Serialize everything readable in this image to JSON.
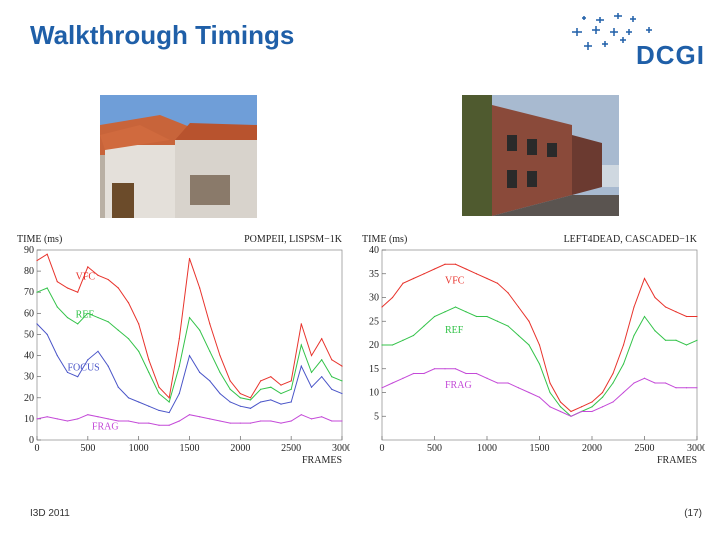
{
  "slide": {
    "title": "Walkthrough Timings",
    "footer_left": "I3D 2011",
    "footer_right": "(17)",
    "logo_text": "DCGI"
  },
  "colors": {
    "title": "#1f5fa8",
    "vfc": "#e8332c",
    "ref": "#34c34a",
    "focus": "#4a55c8",
    "frag": "#c44ad8"
  },
  "chart_data": [
    {
      "type": "line",
      "title": "POMPEII, LISPSM−1K",
      "ylabel": "TIME (ms)",
      "xlabel": "FRAMES",
      "xlim": [
        0,
        3000
      ],
      "ylim": [
        0,
        90
      ],
      "xticks": [
        0,
        500,
        1000,
        1500,
        2000,
        2500,
        3000
      ],
      "yticks": [
        0,
        10,
        20,
        30,
        40,
        50,
        60,
        70,
        80,
        90
      ],
      "series": [
        {
          "name": "VFC",
          "color": "#e8332c",
          "x": [
            0,
            100,
            200,
            300,
            400,
            500,
            600,
            700,
            800,
            900,
            1000,
            1100,
            1200,
            1300,
            1400,
            1500,
            1600,
            1700,
            1800,
            1900,
            2000,
            2100,
            2200,
            2300,
            2400,
            2500,
            2600,
            2700,
            2800,
            2900,
            3000
          ],
          "y": [
            85,
            88,
            75,
            72,
            70,
            82,
            78,
            76,
            72,
            65,
            55,
            38,
            25,
            20,
            48,
            86,
            72,
            55,
            40,
            28,
            22,
            20,
            28,
            30,
            26,
            28,
            55,
            40,
            48,
            38,
            35
          ]
        },
        {
          "name": "REF",
          "color": "#34c34a",
          "x": [
            0,
            100,
            200,
            300,
            400,
            500,
            600,
            700,
            800,
            900,
            1000,
            1100,
            1200,
            1300,
            1400,
            1500,
            1600,
            1700,
            1800,
            1900,
            2000,
            2100,
            2200,
            2300,
            2400,
            2500,
            2600,
            2700,
            2800,
            2900,
            3000
          ],
          "y": [
            70,
            72,
            63,
            58,
            55,
            60,
            58,
            56,
            52,
            48,
            42,
            32,
            22,
            18,
            35,
            58,
            52,
            42,
            32,
            24,
            20,
            19,
            24,
            25,
            22,
            24,
            45,
            32,
            38,
            30,
            28
          ]
        },
        {
          "name": "FOCUS",
          "color": "#4a55c8",
          "x": [
            0,
            100,
            200,
            300,
            400,
            500,
            600,
            700,
            800,
            900,
            1000,
            1100,
            1200,
            1300,
            1400,
            1500,
            1600,
            1700,
            1800,
            1900,
            2000,
            2100,
            2200,
            2300,
            2400,
            2500,
            2600,
            2700,
            2800,
            2900,
            3000
          ],
          "y": [
            55,
            50,
            40,
            32,
            30,
            38,
            42,
            35,
            25,
            20,
            18,
            16,
            14,
            13,
            22,
            40,
            32,
            28,
            22,
            18,
            16,
            15,
            18,
            19,
            17,
            18,
            35,
            25,
            30,
            24,
            22
          ]
        },
        {
          "name": "FRAG",
          "color": "#c44ad8",
          "x": [
            0,
            100,
            200,
            300,
            400,
            500,
            600,
            700,
            800,
            900,
            1000,
            1100,
            1200,
            1300,
            1400,
            1500,
            1600,
            1700,
            1800,
            1900,
            2000,
            2100,
            2200,
            2300,
            2400,
            2500,
            2600,
            2700,
            2800,
            2900,
            3000
          ],
          "y": [
            10,
            11,
            10,
            9,
            10,
            12,
            11,
            10,
            9,
            9,
            8,
            8,
            7,
            7,
            9,
            12,
            11,
            10,
            9,
            8,
            8,
            8,
            9,
            9,
            8,
            9,
            12,
            10,
            11,
            9,
            9
          ]
        }
      ],
      "annotations": [
        "VFC",
        "REF",
        "FOCUS",
        "FRAG"
      ]
    },
    {
      "type": "line",
      "title": "LEFT4DEAD, CASCADED−1K",
      "ylabel": "TIME (ms)",
      "xlabel": "FRAMES",
      "xlim": [
        0,
        3000
      ],
      "ylim": [
        0,
        40
      ],
      "xticks": [
        0,
        500,
        1000,
        1500,
        2000,
        2500,
        3000
      ],
      "yticks": [
        5,
        10,
        15,
        20,
        25,
        30,
        35,
        40
      ],
      "series": [
        {
          "name": "VFC",
          "color": "#e8332c",
          "x": [
            0,
            100,
            200,
            300,
            400,
            500,
            600,
            700,
            800,
            900,
            1000,
            1100,
            1200,
            1300,
            1400,
            1500,
            1600,
            1700,
            1800,
            1900,
            2000,
            2100,
            2200,
            2300,
            2400,
            2500,
            2600,
            2700,
            2800,
            2900,
            3000
          ],
          "y": [
            28,
            30,
            33,
            34,
            35,
            36,
            37,
            37,
            36,
            35,
            34,
            33,
            31,
            28,
            25,
            20,
            12,
            8,
            6,
            7,
            8,
            10,
            14,
            20,
            28,
            34,
            30,
            28,
            27,
            26,
            26
          ]
        },
        {
          "name": "REF",
          "color": "#34c34a",
          "x": [
            0,
            100,
            200,
            300,
            400,
            500,
            600,
            700,
            800,
            900,
            1000,
            1100,
            1200,
            1300,
            1400,
            1500,
            1600,
            1700,
            1800,
            1900,
            2000,
            2100,
            2200,
            2300,
            2400,
            2500,
            2600,
            2700,
            2800,
            2900,
            3000
          ],
          "y": [
            20,
            20,
            21,
            22,
            24,
            26,
            27,
            28,
            27,
            26,
            26,
            25,
            24,
            22,
            20,
            16,
            10,
            7,
            5,
            6,
            7,
            9,
            12,
            16,
            22,
            26,
            23,
            21,
            21,
            20,
            21
          ]
        },
        {
          "name": "FRAG",
          "color": "#c44ad8",
          "x": [
            0,
            100,
            200,
            300,
            400,
            500,
            600,
            700,
            800,
            900,
            1000,
            1100,
            1200,
            1300,
            1400,
            1500,
            1600,
            1700,
            1800,
            1900,
            2000,
            2100,
            2200,
            2300,
            2400,
            2500,
            2600,
            2700,
            2800,
            2900,
            3000
          ],
          "y": [
            11,
            12,
            13,
            14,
            14,
            15,
            15,
            15,
            14,
            14,
            13,
            12,
            12,
            11,
            10,
            9,
            7,
            6,
            5,
            6,
            6,
            7,
            8,
            10,
            12,
            13,
            12,
            12,
            11,
            11,
            11
          ]
        }
      ],
      "annotations": [
        "VFC",
        "REF",
        "FRAG"
      ]
    }
  ]
}
